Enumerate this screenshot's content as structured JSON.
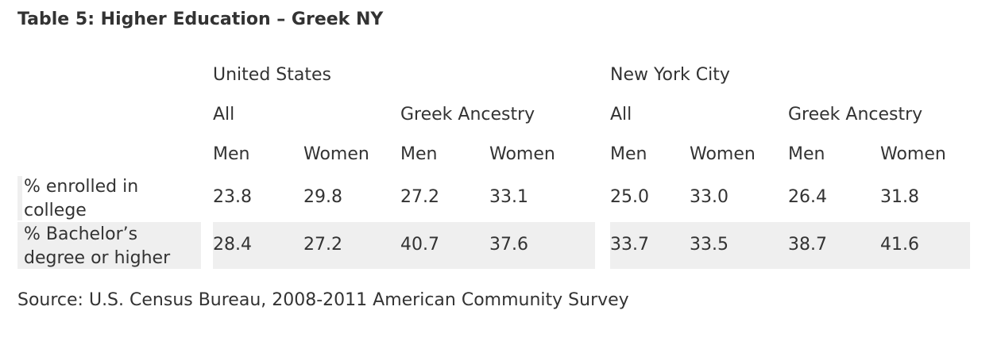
{
  "header": {
    "title": "Table 5: Higher Education – Greek NY"
  },
  "table": {
    "regions": [
      "United States",
      "New York City"
    ],
    "groups": [
      "All",
      "Greek Ancestry",
      "All",
      "Greek Ancestry"
    ],
    "sexes": [
      "Men",
      "Women",
      "Men",
      "Women",
      "Men",
      "Women",
      "Men",
      "Women"
    ],
    "rows": [
      {
        "label": "% enrolled in college",
        "values": [
          "23.8",
          "29.8",
          "27.2",
          "33.1",
          "25.0",
          "33.0",
          "26.4",
          "31.8"
        ]
      },
      {
        "label": "% Bachelor’s degree or higher",
        "values": [
          "28.4",
          "27.2",
          "40.7",
          "37.6",
          "33.7",
          "33.5",
          "38.7",
          "41.6"
        ]
      }
    ]
  },
  "footer": {
    "source": "Source: U.S. Census Bureau, 2008-2011 American Community Survey"
  }
}
